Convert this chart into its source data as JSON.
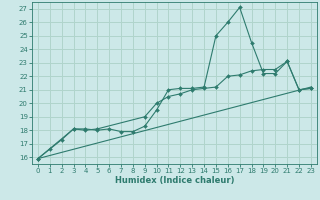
{
  "title": "",
  "xlabel": "Humidex (Indice chaleur)",
  "bg_color": "#cce8e8",
  "grid_color": "#b0d4cc",
  "line_color": "#2e7b6e",
  "xlim": [
    -0.5,
    23.5
  ],
  "ylim": [
    15.5,
    27.5
  ],
  "xticks": [
    0,
    1,
    2,
    3,
    4,
    5,
    6,
    7,
    8,
    9,
    10,
    11,
    12,
    13,
    14,
    15,
    16,
    17,
    18,
    19,
    20,
    21,
    22,
    23
  ],
  "yticks": [
    16,
    17,
    18,
    19,
    20,
    21,
    22,
    23,
    24,
    25,
    26,
    27
  ],
  "line1_x": [
    0,
    1,
    2,
    3,
    4,
    5,
    6,
    7,
    8,
    9,
    10,
    11,
    12,
    13,
    14,
    15,
    16,
    17,
    18,
    19,
    20,
    21,
    22,
    23
  ],
  "line1_y": [
    15.9,
    16.6,
    17.3,
    18.1,
    18.1,
    18.0,
    18.1,
    17.9,
    17.9,
    18.3,
    19.5,
    21.0,
    21.1,
    21.1,
    21.2,
    25.0,
    26.0,
    27.1,
    24.5,
    22.2,
    22.2,
    23.1,
    21.0,
    21.1
  ],
  "line2_x": [
    0,
    3,
    4,
    5,
    9,
    10,
    11,
    12,
    13,
    14,
    15,
    16,
    17,
    18,
    19,
    20,
    21,
    22,
    23
  ],
  "line2_y": [
    15.9,
    18.1,
    18.0,
    18.1,
    19.0,
    20.0,
    20.5,
    20.7,
    21.0,
    21.1,
    21.2,
    22.0,
    22.1,
    22.4,
    22.5,
    22.5,
    23.1,
    21.0,
    21.1
  ],
  "line3_x": [
    0,
    23
  ],
  "line3_y": [
    15.9,
    21.2
  ]
}
